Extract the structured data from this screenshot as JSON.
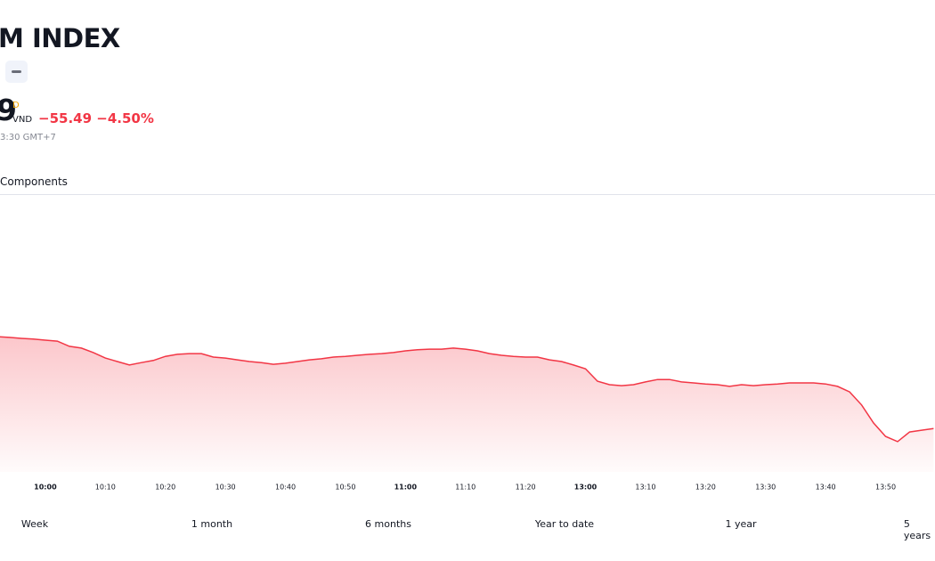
{
  "header": {
    "title": "M INDEX",
    "price": "9",
    "flag": "D",
    "currency": "VND",
    "change": "−55.49",
    "change_pct": "−4.50%",
    "time": "3:30 GMT+7",
    "tab": "Components",
    "ranges": [
      "Week",
      "1 month",
      "6 months",
      "Year to date",
      "1 year",
      "5 years"
    ]
  },
  "chart_data": {
    "type": "line",
    "color": "#f23645",
    "ylim": [
      1160,
      1240
    ],
    "categories": [
      null,
      null,
      null,
      null,
      "10:00",
      null,
      null,
      null,
      null,
      "10:10",
      null,
      null,
      null,
      null,
      "10:20",
      null,
      null,
      null,
      null,
      "10:30",
      null,
      null,
      null,
      null,
      "10:40",
      null,
      null,
      null,
      null,
      "10:50",
      null,
      null,
      null,
      null,
      "11:00",
      null,
      null,
      null,
      null,
      "11:10",
      null,
      null,
      null,
      null,
      "11:20",
      null,
      null,
      null,
      null,
      "13:00",
      null,
      null,
      null,
      null,
      "13:10",
      null,
      null,
      null,
      null,
      "13:20",
      null,
      null,
      null,
      null,
      "13:30",
      null,
      null,
      null,
      null,
      "13:40",
      null,
      null,
      null,
      null,
      "13:50",
      null,
      null,
      null,
      null
    ],
    "values": [
      1199.2,
      1199.0,
      1198.7,
      1198.5,
      1198.2,
      1197.9,
      1196.4,
      1195.9,
      1194.6,
      1193.0,
      1192.0,
      1191.0,
      1191.7,
      1192.3,
      1193.5,
      1194.1,
      1194.3,
      1194.3,
      1193.3,
      1193.0,
      1192.5,
      1192.0,
      1191.7,
      1191.2,
      1191.5,
      1192.0,
      1192.5,
      1192.8,
      1193.3,
      1193.5,
      1193.8,
      1194.1,
      1194.3,
      1194.6,
      1195.1,
      1195.4,
      1195.6,
      1195.6,
      1195.9,
      1195.6,
      1195.1,
      1194.3,
      1193.8,
      1193.5,
      1193.3,
      1193.3,
      1192.5,
      1192.0,
      1191.0,
      1189.9,
      1186.3,
      1185.3,
      1185.0,
      1185.3,
      1186.1,
      1186.8,
      1186.8,
      1186.1,
      1185.8,
      1185.5,
      1185.3,
      1184.8,
      1185.3,
      1185.0,
      1185.3,
      1185.5,
      1185.8,
      1185.8,
      1185.8,
      1185.5,
      1184.8,
      1183.2,
      1179.4,
      1174.2,
      1170.3,
      1168.8,
      1171.6,
      1172.1,
      1172.6
    ]
  }
}
